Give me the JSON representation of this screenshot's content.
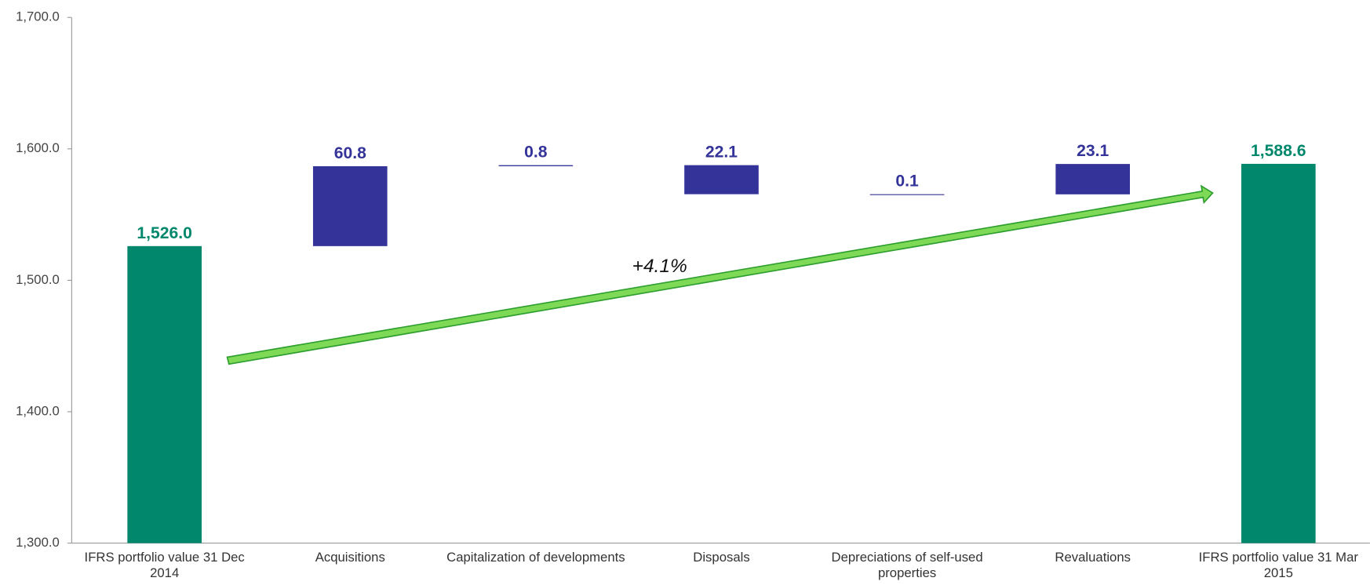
{
  "chart_data": {
    "type": "waterfall",
    "categories": [
      "IFRS portfolio value 31 Dec 2014",
      "Acquisitions",
      "Capitalization of developments",
      "Disposals",
      "Depreciations of self-used properties",
      "Revaluations",
      "IFRS portfolio value 31 Mar 2015"
    ],
    "values": [
      1526.0,
      60.8,
      0.8,
      -22.1,
      -0.1,
      23.1,
      1588.6
    ],
    "value_labels": [
      "1,526.0",
      "60.8",
      "0.8",
      "22.1",
      "0.1",
      "23.1",
      "1,588.6"
    ],
    "total_color": "#00876c",
    "change_color": "#333399",
    "ylim": [
      1300,
      1700
    ],
    "yticks": [
      {
        "value": 1300,
        "label": "1,300.0"
      },
      {
        "value": 1400,
        "label": "1,400.0"
      },
      {
        "value": 1500,
        "label": "1,500.0"
      },
      {
        "value": 1600,
        "label": "1,600.0"
      },
      {
        "value": 1700,
        "label": "1,700.0"
      }
    ],
    "annotation": "+4.1%"
  }
}
